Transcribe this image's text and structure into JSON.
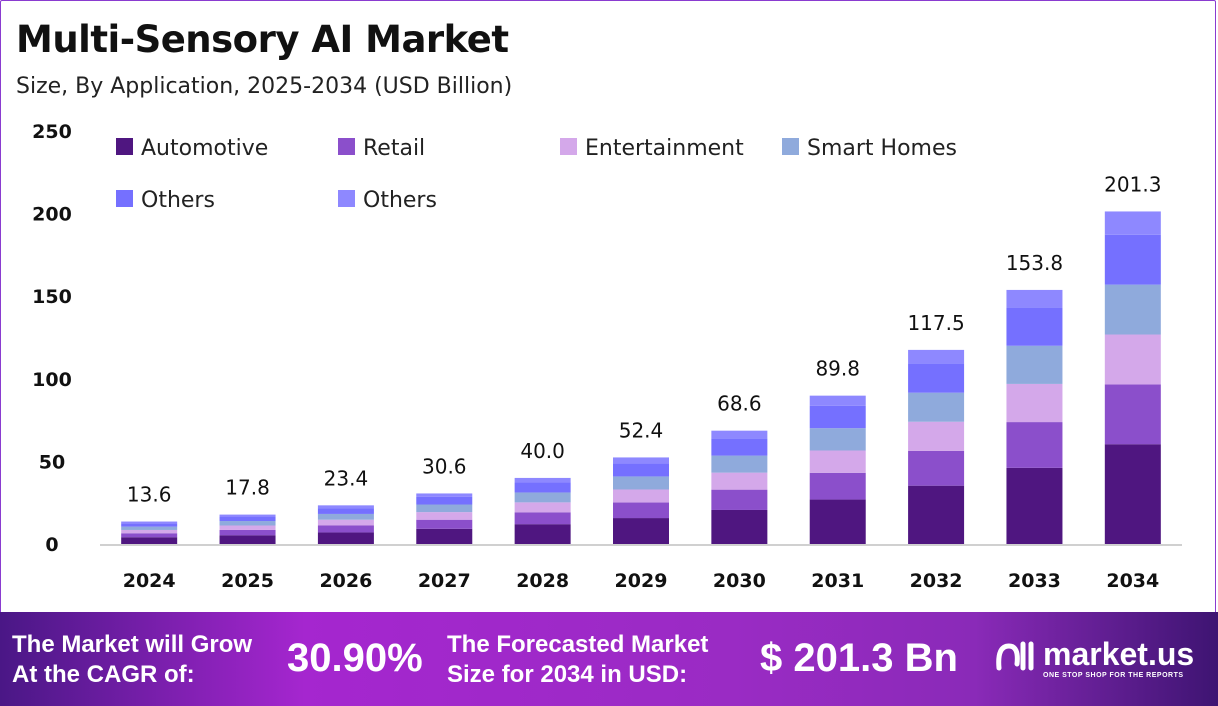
{
  "title": "Multi-Sensory AI Market",
  "subtitle": "Size, By Application, 2025-2034 (USD Billion)",
  "chart_data": {
    "type": "bar",
    "stacked": true,
    "categories": [
      "2024",
      "2025",
      "2026",
      "2027",
      "2028",
      "2029",
      "2030",
      "2031",
      "2032",
      "2033",
      "2034"
    ],
    "totals": [
      "13.6",
      "17.8",
      "23.4",
      "30.6",
      "40.0",
      "52.4",
      "68.6",
      "89.8",
      "117.5",
      "153.8",
      "201.3"
    ],
    "ylim": [
      0,
      250
    ],
    "yticks": [
      0,
      50,
      100,
      150,
      200,
      250
    ],
    "grid": false,
    "legend": "top-left",
    "series": [
      {
        "name": "Automotive",
        "color": "#4f1680",
        "values": [
          4.1,
          5.3,
          7.0,
          9.2,
          12.0,
          15.7,
          20.6,
          26.9,
          35.3,
          46.1,
          60.4
        ]
      },
      {
        "name": "Retail",
        "color": "#8b4fcb",
        "values": [
          2.4,
          3.2,
          4.2,
          5.5,
          7.2,
          9.4,
          12.3,
          16.2,
          21.1,
          27.7,
          36.2
        ]
      },
      {
        "name": "Entertainment",
        "color": "#d4a8ea",
        "values": [
          2.0,
          2.7,
          3.5,
          4.6,
          6.0,
          7.9,
          10.3,
          13.5,
          17.6,
          23.1,
          30.2
        ]
      },
      {
        "name": "Smart Homes",
        "color": "#8faadc",
        "values": [
          2.0,
          2.7,
          3.5,
          4.6,
          6.0,
          7.9,
          10.3,
          13.5,
          17.6,
          23.1,
          30.2
        ]
      },
      {
        "name": "Others",
        "color": "#7570ff",
        "values": [
          2.0,
          2.7,
          3.5,
          4.6,
          6.0,
          7.9,
          10.3,
          13.5,
          17.6,
          23.1,
          30.2
        ]
      },
      {
        "name": "Others",
        "color": "#8e88ff",
        "values": [
          1.1,
          1.2,
          1.7,
          2.1,
          2.8,
          3.6,
          4.8,
          6.2,
          8.3,
          10.7,
          14.1
        ]
      }
    ]
  },
  "footer": {
    "cagr_label_1": "The Market will Grow",
    "cagr_label_2": "At the CAGR of:",
    "cagr_value": "30.90%",
    "forecast_label_1": "The Forecasted Market",
    "forecast_label_2": "Size for 2034 in USD:",
    "forecast_value": "$ 201.3 Bn",
    "logo_name": "market.us",
    "logo_tagline": "ONE STOP SHOP FOR THE REPORTS"
  }
}
